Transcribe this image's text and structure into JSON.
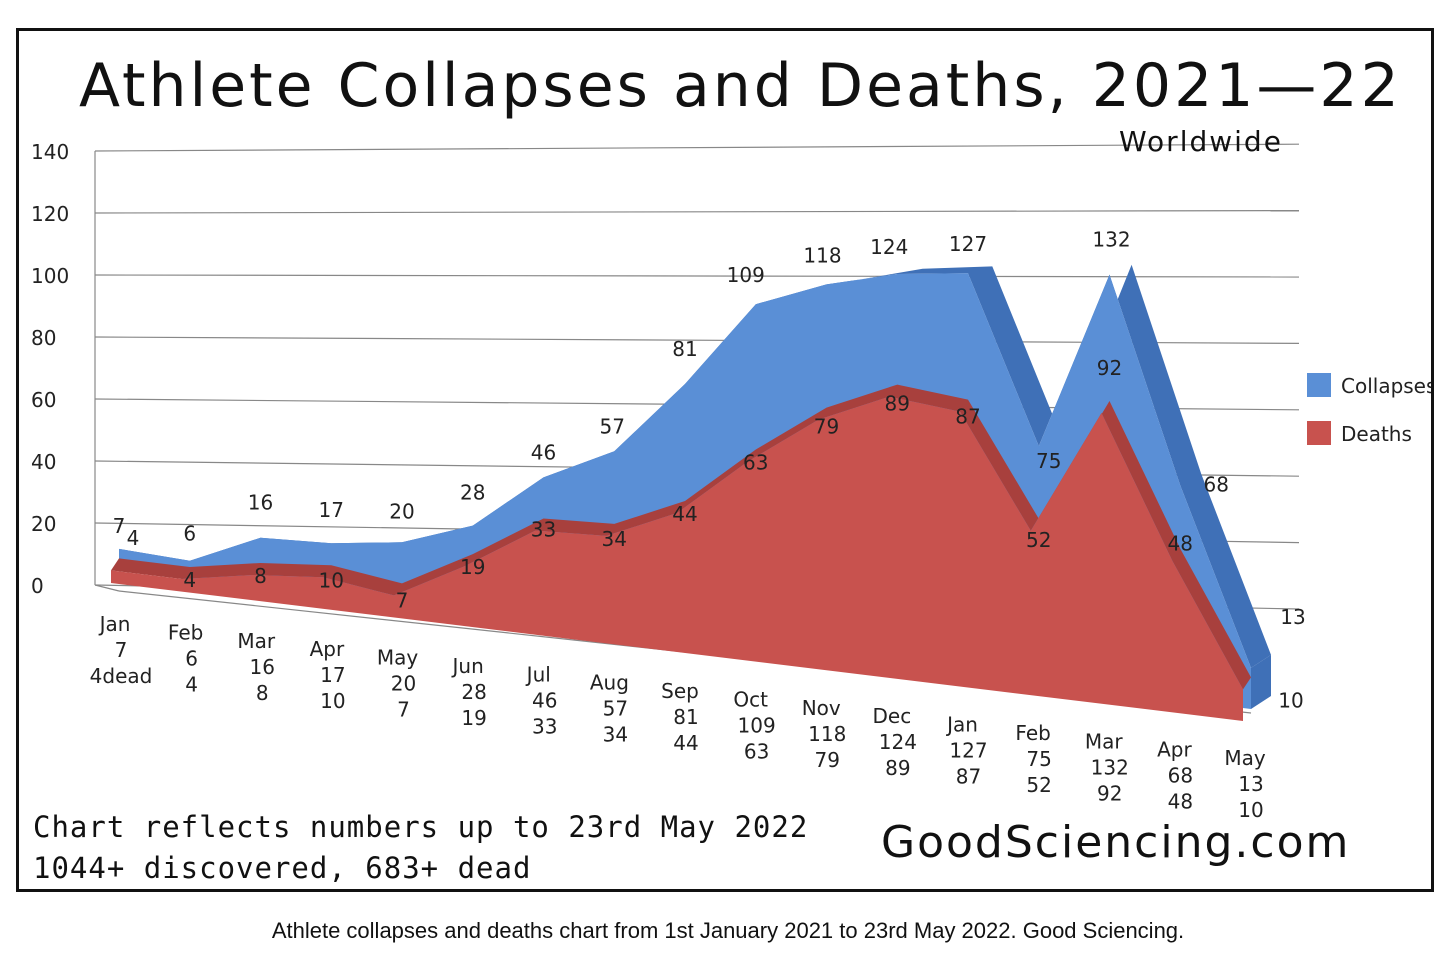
{
  "chart_data": {
    "type": "area",
    "title": "Athlete Collapses and Deaths, 2021—22",
    "subtitle": "Worldwide",
    "categories": [
      "Jan",
      "Feb",
      "Mar",
      "Apr",
      "May",
      "Jun",
      "Jul",
      "Aug",
      "Sep",
      "Oct",
      "Nov",
      "Dec",
      "Jan",
      "Feb",
      "Mar",
      "Apr",
      "May"
    ],
    "series": [
      {
        "name": "Collapses",
        "color": "#5a8fd6",
        "values": [
          7,
          6,
          16,
          17,
          20,
          28,
          46,
          57,
          81,
          109,
          118,
          124,
          127,
          75,
          132,
          68,
          13
        ]
      },
      {
        "name": "Deaths",
        "color": "#c8524e",
        "values": [
          4,
          4,
          8,
          10,
          7,
          19,
          33,
          34,
          44,
          63,
          79,
          89,
          87,
          52,
          92,
          48,
          10
        ]
      }
    ],
    "point_labels": {
      "collapses": [
        "7",
        "6",
        "16",
        "17",
        "20",
        "28",
        "46",
        "57",
        "81",
        "109",
        "118",
        "124",
        "127",
        "75",
        "132",
        "68",
        "13"
      ],
      "deaths": [
        "4",
        "4",
        "8",
        "10",
        "7",
        "19",
        "33",
        "34",
        "44",
        "63",
        "79",
        "89",
        "87",
        "52",
        "92",
        "48",
        "10"
      ]
    },
    "first_deaths_label": "4dead",
    "extra_label": "4",
    "yticks": [
      "0",
      "20",
      "40",
      "60",
      "80",
      "100",
      "120",
      "140"
    ],
    "ylim": [
      0,
      140
    ],
    "grid": true,
    "legend_position": "right",
    "footnote_line1": "Chart reflects numbers up to 23rd May 2022",
    "footnote_line2": "1044+ discovered, 683+ dead",
    "site": "GoodSciencing.com"
  },
  "caption": "Athlete collapses and deaths chart from 1st January 2021 to 23rd May 2022. Good Sciencing."
}
